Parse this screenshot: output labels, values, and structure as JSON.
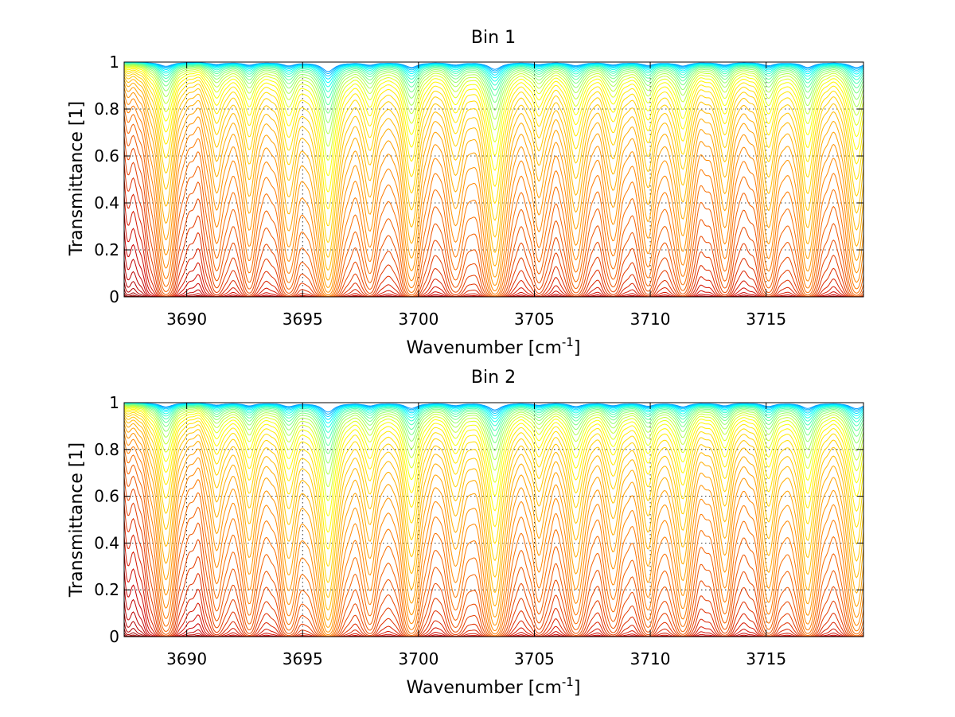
{
  "chart_data": [
    {
      "type": "line",
      "title": "Bin 1",
      "xlabel": "Wavenumber [cm",
      "xlabel_sup": "-1",
      "xlabel_end": "]",
      "ylabel": "Transmittance [1]",
      "xlim": [
        3687.3,
        3719.2
      ],
      "ylim": [
        0,
        1
      ],
      "xticks": [
        3690,
        3695,
        3700,
        3705,
        3710,
        3715
      ],
      "yticks": [
        0,
        0.2,
        0.4,
        0.6,
        0.8,
        1
      ],
      "ytick_labels": [
        "0",
        "0.2",
        "0.4",
        "0.6",
        "0.8",
        "1"
      ],
      "grid": true,
      "series_count": 46,
      "colormap": [
        "#0000ff",
        "#00ffff",
        "#ffff00",
        "#ff8000",
        "#cc0000",
        "#800000"
      ],
      "absorption_lines": [
        {
          "x": 3689.1,
          "min_transmittance": 0.18
        },
        {
          "x": 3691.3,
          "min_transmittance": 0.42
        },
        {
          "x": 3692.7,
          "min_transmittance": 0.34
        },
        {
          "x": 3694.4,
          "min_transmittance": 0.26
        },
        {
          "x": 3696.1,
          "min_transmittance": 0.02
        },
        {
          "x": 3697.9,
          "min_transmittance": 0.36
        },
        {
          "x": 3699.7,
          "min_transmittance": 0.12
        },
        {
          "x": 3701.6,
          "min_transmittance": 0.36
        },
        {
          "x": 3703.3,
          "min_transmittance": 0.05
        },
        {
          "x": 3705.2,
          "min_transmittance": 0.42
        },
        {
          "x": 3706.8,
          "min_transmittance": 0.24
        },
        {
          "x": 3708.4,
          "min_transmittance": 0.36
        },
        {
          "x": 3709.9,
          "min_transmittance": 0.3
        },
        {
          "x": 3711.4,
          "min_transmittance": 0.22
        },
        {
          "x": 3713.2,
          "min_transmittance": 0.34
        },
        {
          "x": 3715.1,
          "min_transmittance": 0.26
        },
        {
          "x": 3716.8,
          "min_transmittance": 0.12
        },
        {
          "x": 3718.9,
          "min_transmittance": 0.1
        }
      ]
    },
    {
      "type": "line",
      "title": "Bin 2",
      "xlabel": "Wavenumber [cm",
      "xlabel_sup": "-1",
      "xlabel_end": "]",
      "ylabel": "Transmittance [1]",
      "xlim": [
        3687.3,
        3719.2
      ],
      "ylim": [
        0,
        1
      ],
      "xticks": [
        3690,
        3695,
        3700,
        3705,
        3710,
        3715
      ],
      "yticks": [
        0,
        0.2,
        0.4,
        0.6,
        0.8,
        1
      ],
      "ytick_labels": [
        "0",
        "0.2",
        "0.4",
        "0.6",
        "0.8",
        "1"
      ],
      "grid": true,
      "series_count": 46,
      "colormap": [
        "#0000ff",
        "#00ffff",
        "#ffff00",
        "#ff8000",
        "#cc0000",
        "#800000"
      ],
      "absorption_lines": [
        {
          "x": 3689.1,
          "min_transmittance": 0.18
        },
        {
          "x": 3691.3,
          "min_transmittance": 0.42
        },
        {
          "x": 3692.7,
          "min_transmittance": 0.32
        },
        {
          "x": 3694.4,
          "min_transmittance": 0.24
        },
        {
          "x": 3696.1,
          "min_transmittance": 0.02
        },
        {
          "x": 3697.9,
          "min_transmittance": 0.34
        },
        {
          "x": 3699.7,
          "min_transmittance": 0.1
        },
        {
          "x": 3701.6,
          "min_transmittance": 0.36
        },
        {
          "x": 3703.3,
          "min_transmittance": 0.05
        },
        {
          "x": 3705.2,
          "min_transmittance": 0.42
        },
        {
          "x": 3706.8,
          "min_transmittance": 0.22
        },
        {
          "x": 3708.4,
          "min_transmittance": 0.34
        },
        {
          "x": 3709.9,
          "min_transmittance": 0.28
        },
        {
          "x": 3711.4,
          "min_transmittance": 0.2
        },
        {
          "x": 3713.2,
          "min_transmittance": 0.32
        },
        {
          "x": 3715.1,
          "min_transmittance": 0.24
        },
        {
          "x": 3716.8,
          "min_transmittance": 0.1
        },
        {
          "x": 3718.9,
          "min_transmittance": 0.08
        }
      ]
    }
  ]
}
